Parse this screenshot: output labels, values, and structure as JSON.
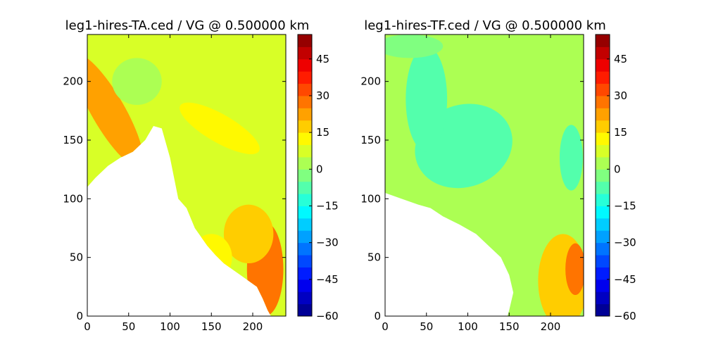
{
  "chart_data": [
    {
      "type": "heatmap",
      "title": "leg1-hires-TA.ced / VG @ 0.500000 km",
      "xlim": [
        0,
        240
      ],
      "ylim": [
        0,
        240
      ],
      "xticks": [
        0,
        50,
        100,
        150,
        200
      ],
      "yticks": [
        0,
        50,
        100,
        150,
        200
      ],
      "colorbar": {
        "range": [
          -60,
          55
        ],
        "ticks": [
          -60,
          -45,
          -30,
          -15,
          0,
          15,
          30,
          45
        ],
        "levels": [
          -60,
          -55,
          -50,
          -45,
          -40,
          -35,
          -30,
          -25,
          -20,
          -15,
          -10,
          -5,
          0,
          5,
          10,
          15,
          20,
          25,
          30,
          35,
          40,
          45,
          50,
          55
        ]
      },
      "field": {
        "description_values": "approximate filled-contour blobs in data units",
        "background_value": 5,
        "data_boundary": [
          [
            0,
            110
          ],
          [
            10,
            118
          ],
          [
            25,
            128
          ],
          [
            40,
            135
          ],
          [
            55,
            140
          ],
          [
            70,
            150
          ],
          [
            80,
            162
          ],
          [
            90,
            160
          ],
          [
            100,
            135
          ],
          [
            110,
            100
          ],
          [
            120,
            92
          ],
          [
            130,
            75
          ],
          [
            145,
            60
          ],
          [
            155,
            52
          ],
          [
            165,
            45
          ],
          [
            175,
            40
          ],
          [
            185,
            35
          ],
          [
            195,
            30
          ],
          [
            205,
            25
          ],
          [
            212,
            15
          ],
          [
            218,
            5
          ],
          [
            222,
            0
          ],
          [
            240,
            0
          ],
          [
            240,
            240
          ],
          [
            0,
            240
          ]
        ],
        "features": [
          {
            "shape": "ellipse",
            "cx": 25,
            "cy": 175,
            "rx": 20,
            "ry": 55,
            "rot": -30,
            "value": 20
          },
          {
            "shape": "ellipse",
            "cx": 215,
            "cy": 40,
            "rx": 22,
            "ry": 40,
            "rot": 0,
            "value": 25
          },
          {
            "shape": "ellipse",
            "cx": 195,
            "cy": 70,
            "rx": 30,
            "ry": 25,
            "rot": 0,
            "value": 15
          },
          {
            "shape": "ellipse",
            "cx": 160,
            "cy": 160,
            "rx": 55,
            "ry": 12,
            "rot": 30,
            "value": 10
          },
          {
            "shape": "ellipse",
            "cx": 60,
            "cy": 200,
            "rx": 30,
            "ry": 20,
            "rot": 0,
            "value": 0
          },
          {
            "shape": "ellipse",
            "cx": 150,
            "cy": 50,
            "rx": 25,
            "ry": 20,
            "rot": 0,
            "value": 10
          }
        ]
      }
    },
    {
      "type": "heatmap",
      "title": "leg1-hires-TF.ced / VG @ 0.500000 km",
      "xlim": [
        0,
        240
      ],
      "ylim": [
        0,
        240
      ],
      "xticks": [
        0,
        50,
        100,
        150,
        200
      ],
      "yticks": [
        0,
        50,
        100,
        150,
        200
      ],
      "colorbar": {
        "range": [
          -60,
          55
        ],
        "ticks": [
          -60,
          -45,
          -30,
          -15,
          0,
          15,
          30,
          45
        ],
        "levels": [
          -60,
          -55,
          -50,
          -45,
          -40,
          -35,
          -30,
          -25,
          -20,
          -15,
          -10,
          -5,
          0,
          5,
          10,
          15,
          20,
          25,
          30,
          35,
          40,
          45,
          50,
          55
        ]
      },
      "field": {
        "description_values": "approximate filled-contour blobs in data units",
        "background_value": 0,
        "data_boundary": [
          [
            0,
            105
          ],
          [
            20,
            100
          ],
          [
            40,
            95
          ],
          [
            55,
            92
          ],
          [
            70,
            85
          ],
          [
            90,
            78
          ],
          [
            110,
            70
          ],
          [
            125,
            60
          ],
          [
            140,
            50
          ],
          [
            150,
            35
          ],
          [
            155,
            20
          ],
          [
            150,
            5
          ],
          [
            148,
            0
          ],
          [
            240,
            0
          ],
          [
            240,
            240
          ],
          [
            0,
            240
          ]
        ],
        "features": [
          {
            "shape": "ellipse",
            "cx": 95,
            "cy": 145,
            "rx": 60,
            "ry": 35,
            "rot": -20,
            "value": -10
          },
          {
            "shape": "ellipse",
            "cx": 50,
            "cy": 185,
            "rx": 25,
            "ry": 45,
            "rot": 0,
            "value": -8
          },
          {
            "shape": "ellipse",
            "cx": 225,
            "cy": 135,
            "rx": 7,
            "ry": 16,
            "rot": 0,
            "value": -20
          },
          {
            "shape": "ellipse",
            "cx": 225,
            "cy": 135,
            "rx": 14,
            "ry": 28,
            "rot": 0,
            "value": -10
          },
          {
            "shape": "ellipse",
            "cx": 215,
            "cy": 30,
            "rx": 30,
            "ry": 40,
            "rot": 0,
            "value": 15
          },
          {
            "shape": "ellipse",
            "cx": 230,
            "cy": 40,
            "rx": 12,
            "ry": 22,
            "rot": 0,
            "value": 25
          },
          {
            "shape": "ellipse",
            "cx": 30,
            "cy": 230,
            "rx": 40,
            "ry": 10,
            "rot": 0,
            "value": -5
          }
        ]
      }
    }
  ]
}
